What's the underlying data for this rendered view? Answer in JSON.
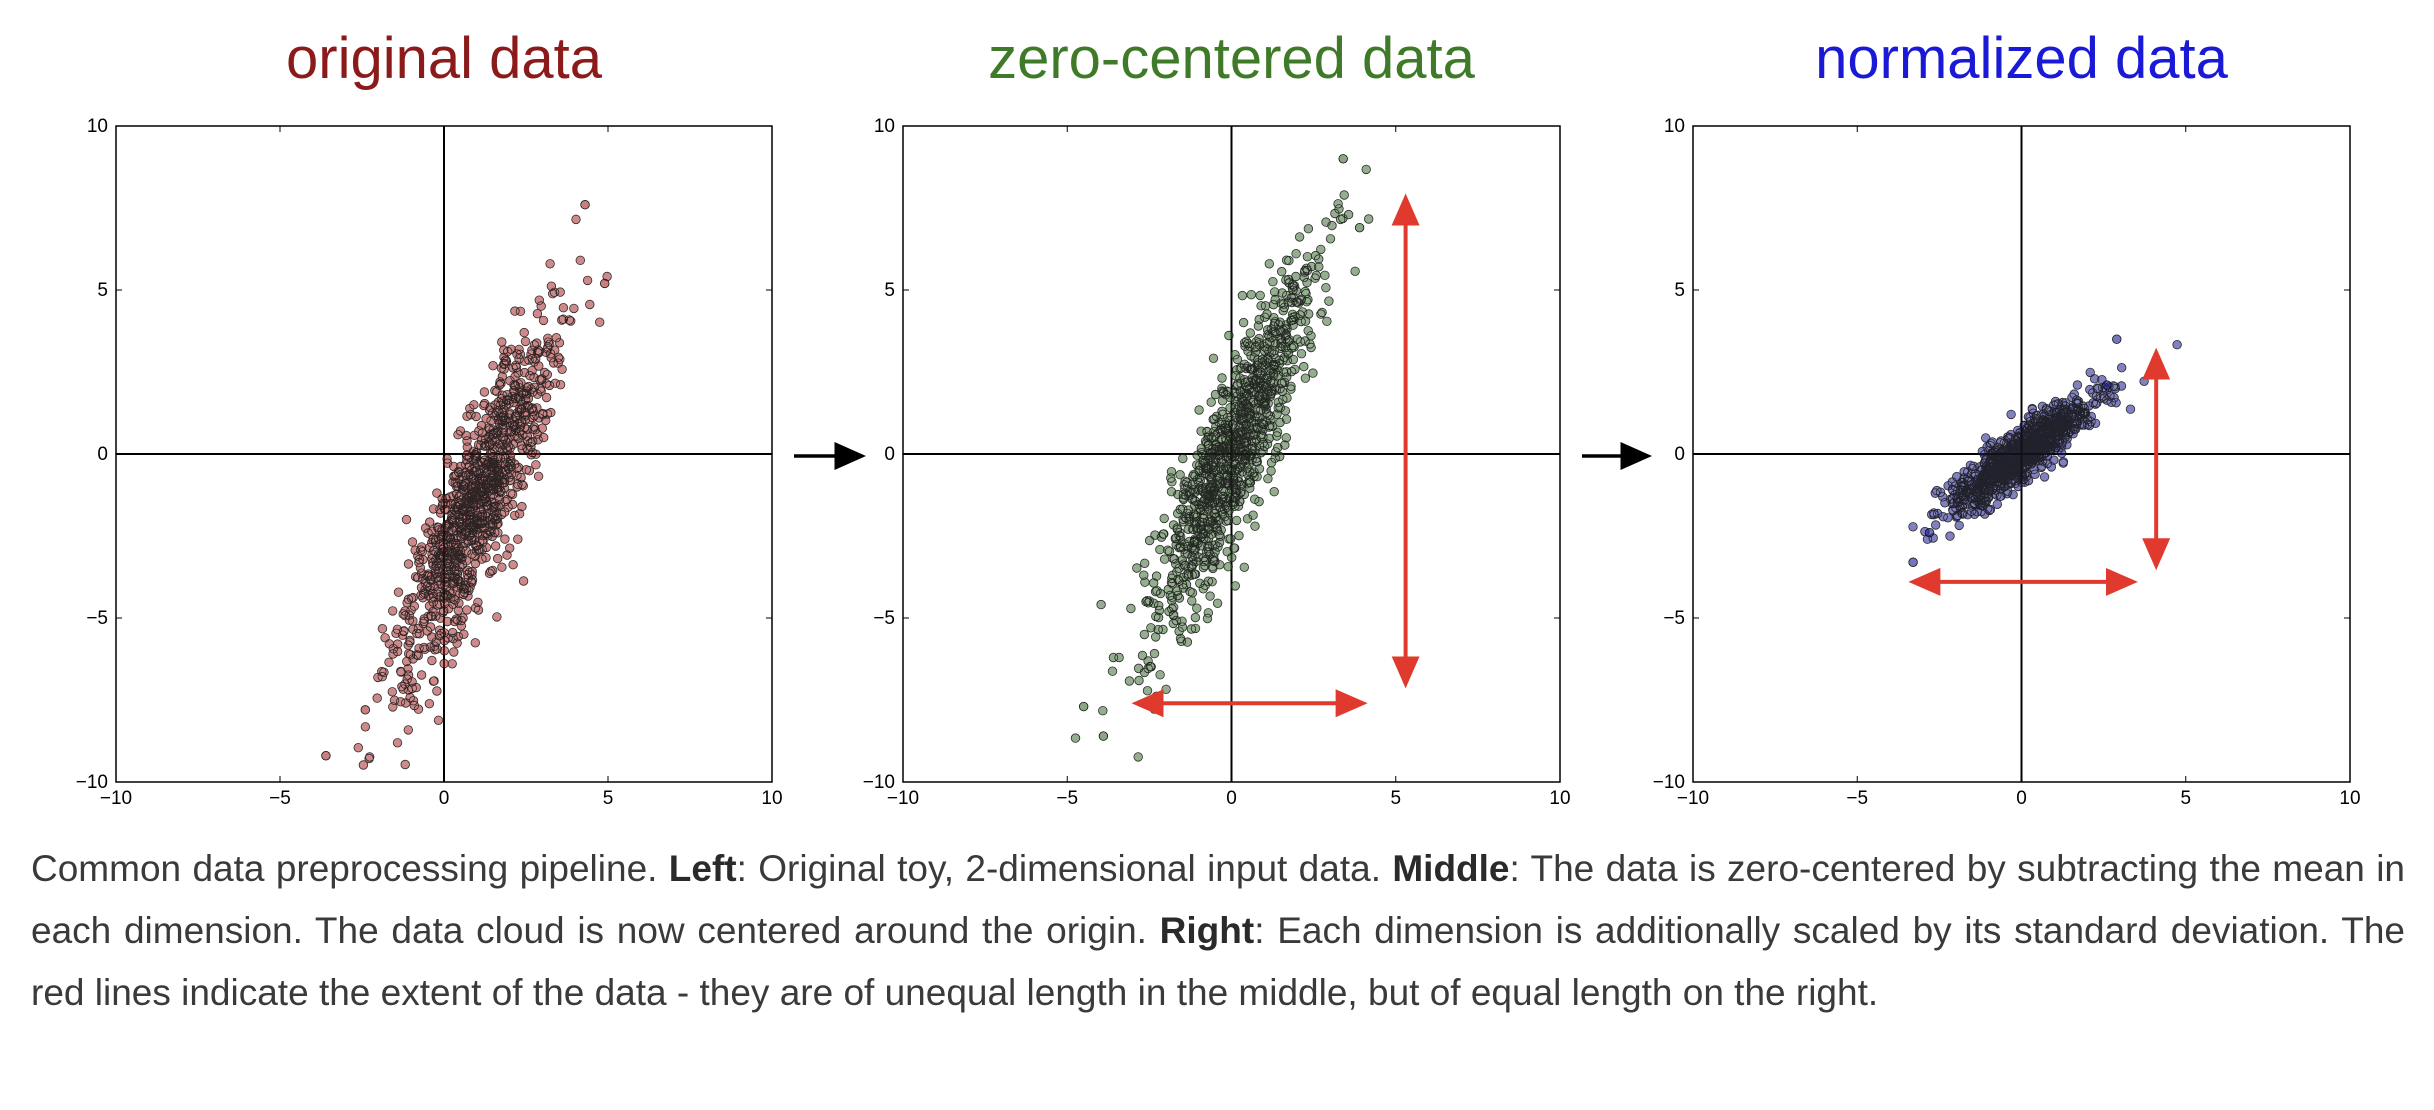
{
  "chart_data": [
    {
      "type": "scatter",
      "title": "original data",
      "title_color": "#8b1a1a",
      "point_fill": "#a52a2a",
      "xlim": [
        -10,
        10
      ],
      "ylim": [
        -10,
        10
      ],
      "xticks": [
        "−10",
        "−5",
        "0",
        "5",
        "10"
      ],
      "yticks": [
        "10",
        "5",
        "0",
        "−5",
        "−10"
      ],
      "grid": false,
      "axes_lines_through_origin": true,
      "cloud": {
        "mean": [
          1.0,
          -1.5
        ],
        "sd_major": 2.9,
        "sd_minor": 0.55,
        "angle_deg": 68,
        "n": 1100
      },
      "outliers": [
        [
          -3.6,
          -9.2
        ],
        [
          4.3,
          7.6
        ],
        [
          -2.4,
          -7.8
        ],
        [
          4.9,
          5.2
        ]
      ],
      "arrows": []
    },
    {
      "type": "scatter",
      "title": "zero-centered data",
      "title_color": "#3e7a28",
      "point_fill": "#3d6b33",
      "xlim": [
        -10,
        10
      ],
      "ylim": [
        -10,
        10
      ],
      "xticks": [
        "−10",
        "−5",
        "0",
        "5",
        "10"
      ],
      "yticks": [
        "10",
        "5",
        "0",
        "−5",
        "−10"
      ],
      "grid": false,
      "axes_lines_through_origin": true,
      "cloud": {
        "mean": [
          0,
          0
        ],
        "sd_major": 2.9,
        "sd_minor": 0.55,
        "angle_deg": 68,
        "n": 1100
      },
      "outliers": [
        [
          3.4,
          9.0
        ],
        [
          -4.5,
          -7.7
        ],
        [
          -3.9,
          -8.6
        ],
        [
          3.9,
          6.9
        ]
      ],
      "arrows": [
        {
          "from": [
            5.3,
            -6.9
          ],
          "to": [
            5.3,
            7.7
          ]
        },
        {
          "from": [
            -2.8,
            -7.6
          ],
          "to": [
            3.9,
            -7.6
          ]
        }
      ]
    },
    {
      "type": "scatter",
      "title": "normalized data",
      "title_color": "#1a1ad6",
      "point_fill": "#1a1a8c",
      "xlim": [
        -10,
        10
      ],
      "ylim": [
        -10,
        10
      ],
      "xticks": [
        "−10",
        "−5",
        "0",
        "5",
        "10"
      ],
      "yticks": [
        "10",
        "5",
        "0",
        "−5",
        "−10"
      ],
      "grid": false,
      "axes_lines_through_origin": true,
      "cloud": {
        "mean": [
          0,
          0
        ],
        "sd_major": 1.35,
        "sd_minor": 0.32,
        "angle_deg": 38,
        "n": 1100
      },
      "outliers": [
        [
          -3.3,
          -3.3
        ],
        [
          2.9,
          3.5
        ],
        [
          -2.8,
          -2.4
        ],
        [
          2.6,
          2.1
        ]
      ],
      "arrows": [
        {
          "from": [
            4.1,
            -3.3
          ],
          "to": [
            4.1,
            3.0
          ]
        },
        {
          "from": [
            -3.2,
            -3.9
          ],
          "to": [
            3.3,
            -3.9
          ]
        }
      ]
    }
  ],
  "flow_arrow_color": "#000000",
  "annotation_arrow_color": "#e03a2e",
  "caption": {
    "intro": "Common data preprocessing pipeline. ",
    "left_label": "Left",
    "left_text": ": Original toy, 2-dimensional input data. ",
    "middle_label": "Middle",
    "middle_text": ": The data is zero-centered by subtracting the mean in each dimension. The data cloud is now centered around the origin. ",
    "right_label": "Right",
    "right_text": ": Each dimension is additionally scaled by its standard deviation. The red lines indicate the extent of the data - they are of unequal length in the middle, but of equal length on the right."
  }
}
